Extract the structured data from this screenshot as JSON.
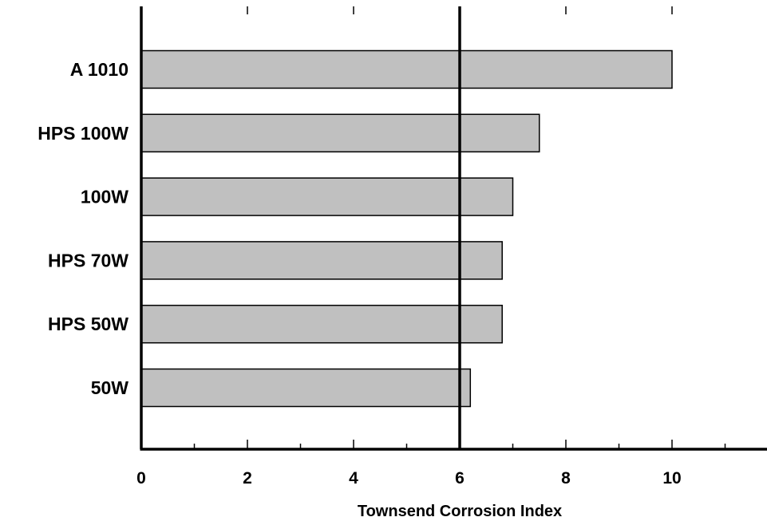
{
  "chart_data": {
    "type": "bar",
    "orientation": "horizontal",
    "categories": [
      "A 1010",
      "HPS 100W",
      "100W",
      "HPS 70W",
      "HPS 50W",
      "50W"
    ],
    "values": [
      10,
      7.5,
      7,
      6.8,
      6.8,
      6.2
    ],
    "xlabel": "Townsend Corrosion Index",
    "ylabel": "",
    "xlim": [
      0,
      12
    ],
    "xticks": [
      0,
      2,
      4,
      6,
      8,
      10
    ],
    "xtick_labels": [
      "0",
      "2",
      "4",
      "6",
      "8",
      "10"
    ],
    "reference_line": 6,
    "grid": false,
    "legend": "none",
    "colors": {
      "bar_fill": "#c0c0c0",
      "bar_stroke": "#000000",
      "axis": "#000000"
    }
  }
}
